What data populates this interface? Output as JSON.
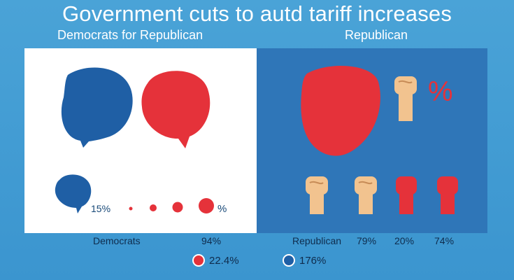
{
  "title": "Government cuts to autd tariff increases",
  "subtitles": {
    "left": "Democrats for Republican",
    "right": "Republican"
  },
  "left_panel": {
    "bubble_percent": "15%",
    "dots_percent": "%"
  },
  "right_panel": {
    "percent_symbol": "%"
  },
  "labels": {
    "democrats": "Democrats",
    "dem_value": "94%",
    "republican": "Republican",
    "rep_values": [
      "79%",
      "20%",
      "74%"
    ]
  },
  "legend": [
    {
      "color": "#e5323a",
      "value": "22.4%"
    },
    {
      "color": "#1f5fa5",
      "value": "176%"
    }
  ],
  "colors": {
    "blue": "#1f5fa5",
    "red": "#e5323a",
    "skin": "#f2c38f",
    "panel_blue": "#2f76b8"
  }
}
